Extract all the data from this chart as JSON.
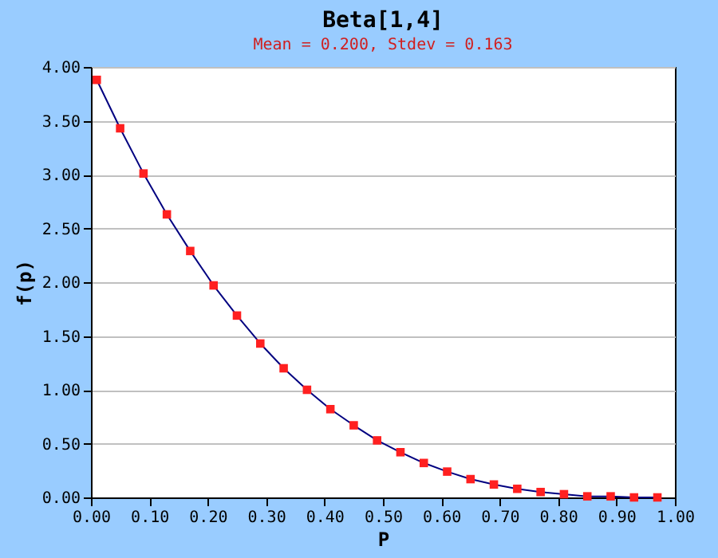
{
  "chart_data": {
    "type": "line",
    "title": "Beta[1,4]",
    "subtitle": "Mean = 0.200, Stdev = 0.163",
    "xlabel": "P",
    "ylabel": "f(p)",
    "x": [
      0.01,
      0.05,
      0.09,
      0.13,
      0.17,
      0.21,
      0.25,
      0.29,
      0.33,
      0.37,
      0.41,
      0.45,
      0.49,
      0.53,
      0.57,
      0.61,
      0.65,
      0.69,
      0.73,
      0.77,
      0.81,
      0.85,
      0.89,
      0.93,
      0.97
    ],
    "series": [
      {
        "type": "line",
        "color": "#000080",
        "marker": "none",
        "values": [
          3.88,
          3.43,
          3.01,
          2.63,
          2.29,
          1.97,
          1.69,
          1.43,
          1.2,
          1.0,
          0.82,
          0.67,
          0.53,
          0.42,
          0.32,
          0.24,
          0.17,
          0.12,
          0.08,
          0.05,
          0.03,
          0.01,
          0.01,
          0.0,
          0.0
        ]
      },
      {
        "type": "scatter",
        "color": "#ff2020",
        "marker": "square",
        "values": [
          3.88,
          3.43,
          3.01,
          2.63,
          2.29,
          1.97,
          1.69,
          1.43,
          1.2,
          1.0,
          0.82,
          0.67,
          0.53,
          0.42,
          0.32,
          0.24,
          0.17,
          0.12,
          0.08,
          0.05,
          0.03,
          0.01,
          0.01,
          0.0,
          0.0
        ]
      }
    ],
    "xlim": [
      0,
      1
    ],
    "ylim": [
      0,
      4
    ],
    "xticks": [
      {
        "value": 0,
        "label": "0.00"
      },
      {
        "value": 0.1,
        "label": "0.10"
      },
      {
        "value": 0.2,
        "label": "0.20"
      },
      {
        "value": 0.3,
        "label": "0.30"
      },
      {
        "value": 0.4,
        "label": "0.40"
      },
      {
        "value": 0.5,
        "label": "0.50"
      },
      {
        "value": 0.6,
        "label": "0.60"
      },
      {
        "value": 0.7,
        "label": "0.70"
      },
      {
        "value": 0.8,
        "label": "0.80"
      },
      {
        "value": 0.9,
        "label": "0.90"
      },
      {
        "value": 1,
        "label": "1.00"
      }
    ],
    "yticks": [
      {
        "value": 0,
        "label": "0.00"
      },
      {
        "value": 0.5,
        "label": "0.50"
      },
      {
        "value": 1,
        "label": "1.00"
      },
      {
        "value": 1.5,
        "label": "1.50"
      },
      {
        "value": 2,
        "label": "2.00"
      },
      {
        "value": 2.5,
        "label": "2.50"
      },
      {
        "value": 3,
        "label": "3.00"
      },
      {
        "value": 3.5,
        "label": "3.50"
      },
      {
        "value": 4,
        "label": "4.00"
      }
    ],
    "grid": "y"
  }
}
